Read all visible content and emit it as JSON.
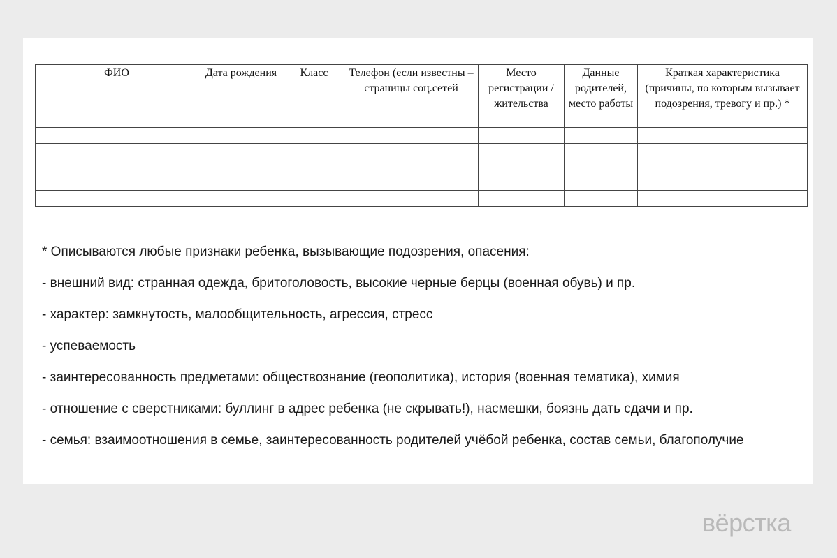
{
  "table": {
    "headers": [
      "ФИО",
      "Дата рождения",
      "Класс",
      "Телефон (если известны – страницы соц.сетей",
      "Место регистрации / жительства",
      "Данные родителей, место работы",
      "Краткая характеристика (причины, по которым вызывает подозрения, тревогу и пр.) *"
    ],
    "empty_rows": 5
  },
  "notes": [
    "* Описываются любые признаки ребенка, вызывающие подозрения, опасения:",
    "- внешний вид: странная одежда, бритоголовость, высокие черные берцы (военная обувь) и пр.",
    "- характер: замкнутость, малообщительность, агрессия, стресс",
    "- успеваемость",
    "- заинтересованность предметами: обществознание (геополитика), история (военная тематика), химия",
    "- отношение с сверстниками: буллинг в адрес ребенка (не скрывать!), насмешки, боязнь дать сдачи и пр.",
    "- семья: взаимоотношения в семье, заинтересованность родителей учёбой ребенка, состав семьи, благополучие"
  ],
  "logo": "вёрстка"
}
